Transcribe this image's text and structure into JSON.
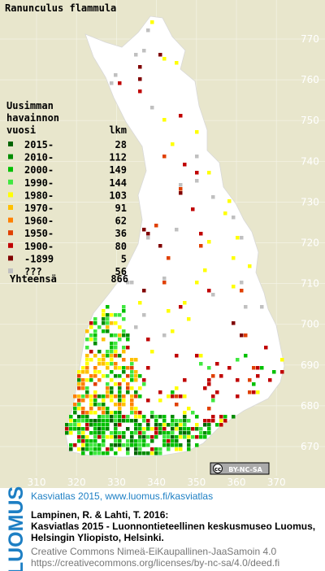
{
  "map": {
    "title": "Ranunculus flammula",
    "legend": {
      "header": [
        "Uusimman",
        "havainnon",
        "vuosi"
      ],
      "count_header": "lkm",
      "rows": [
        {
          "label": "2015-",
          "count": 28,
          "color": "#006400"
        },
        {
          "label": "2010-",
          "count": 112,
          "color": "#008c00"
        },
        {
          "label": "2000-",
          "count": 149,
          "color": "#00c000"
        },
        {
          "label": "1990-",
          "count": 144,
          "color": "#40e840"
        },
        {
          "label": "1980-",
          "count": 103,
          "color": "#ffff00"
        },
        {
          "label": "1970-",
          "count": 91,
          "color": "#ffc000"
        },
        {
          "label": "1960-",
          "count": 62,
          "color": "#ff8000"
        },
        {
          "label": "1950-",
          "count": 36,
          "color": "#e04000"
        },
        {
          "label": "1900-",
          "count": 80,
          "color": "#c00000"
        },
        {
          "label": "-1899",
          "count": 5,
          "color": "#800000"
        },
        {
          "label": "???",
          "count": 56,
          "color": "#c0c0c0"
        }
      ],
      "total_label": "Yhteensä",
      "total": 866
    },
    "yticks": [
      770,
      760,
      750,
      740,
      730,
      720,
      710,
      700,
      690,
      680,
      670
    ],
    "xticks": [
      310,
      320,
      330,
      340,
      350,
      360,
      370
    ],
    "license_badge": "BY-NC-SA"
  },
  "footer": {
    "logo": "LUOMUS",
    "link": "Kasviatlas 2015, www.luomus.fi/kasviatlas",
    "citation": [
      "Lampinen, R. & Lahti, T. 2016:",
      "Kasviatlas 2015 - Luonnontieteellinen keskusmuseo Luomus,",
      "Helsingin Yliopisto, Helsinki."
    ],
    "license": [
      "Creative Commons Nimeä-EiKaupallinen-JaaSamoin 4.0",
      "https://creativecommons.org/licenses/by-nc-sa/4.0/deed.fi"
    ]
  }
}
